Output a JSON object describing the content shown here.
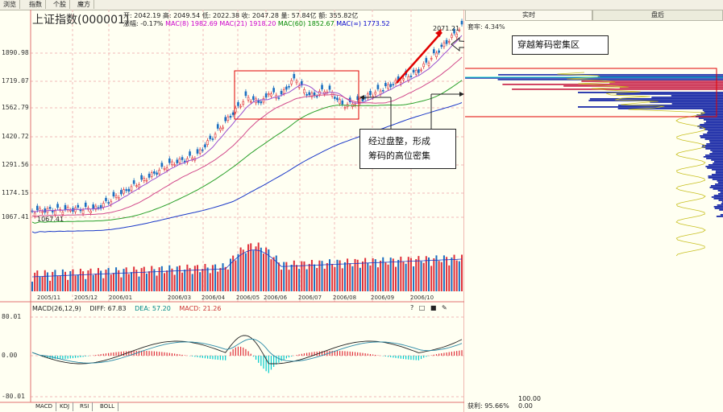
{
  "top_tabs": [
    "浏览",
    "指数",
    "个股",
    "魔方"
  ],
  "title": "上证指数(000001)",
  "quote": {
    "open": "开: 2042.19",
    "high": "高: 2049.54",
    "low": "低: 2022.38",
    "close": "收: 2047.28",
    "volume": "量: 57.84亿",
    "amount": "额: 355.82亿"
  },
  "ma_line": {
    "change": "涨幅: -0.17%",
    "ma8": "MAC(8) 1982.69",
    "ma21": "MAC(21) 1918.20",
    "ma60": "MAC(60) 1852.67",
    "mainf": "MAC(∞) 1773.52"
  },
  "colors": {
    "ma8": "#cc00cc",
    "ma21": "#00aa00",
    "ma60": "#006633",
    "mainf": "#0000cc",
    "up": "#e0303a",
    "down": "#1a6ec0",
    "cyan": "#00cccc"
  },
  "y_axis": [
    "1890.98",
    "1719.07",
    "1562.79",
    "1420.72",
    "1291.56",
    "1174.15",
    "1067.41"
  ],
  "x_axis": [
    "2005/11",
    "2005/12",
    "2006/01",
    "2006/03",
    "2006/04",
    "2006/05",
    "2006/06",
    "2006/07",
    "2006/08",
    "2006/09",
    "2006/10"
  ],
  "low_label": "1067.41",
  "high_label": "2071.21",
  "macd": {
    "header": "MACD(26,12,9)",
    "diff": "DIFF: 67.83",
    "dea": "DEA: 57.20",
    "macd": "MACD: 21.26",
    "y_axis": [
      "80.01",
      "0.00",
      "-80.01"
    ],
    "icons": "? □ ■ ✎"
  },
  "bottom_tabs": [
    "MACD",
    "KDJ",
    "RSI",
    "BOLL"
  ],
  "right_tabs": {
    "realtime": "实时",
    "after": "盘后"
  },
  "chip": {
    "ratio": "套牢: 4.34%",
    "profit": "获利: 95.66%",
    "v1": "100.00",
    "v2": "0.00"
  },
  "callouts": {
    "top": "穿越筹码密集区",
    "mid_line1": "经过盘整，形成",
    "mid_line2": "筹码的高位密集"
  }
}
